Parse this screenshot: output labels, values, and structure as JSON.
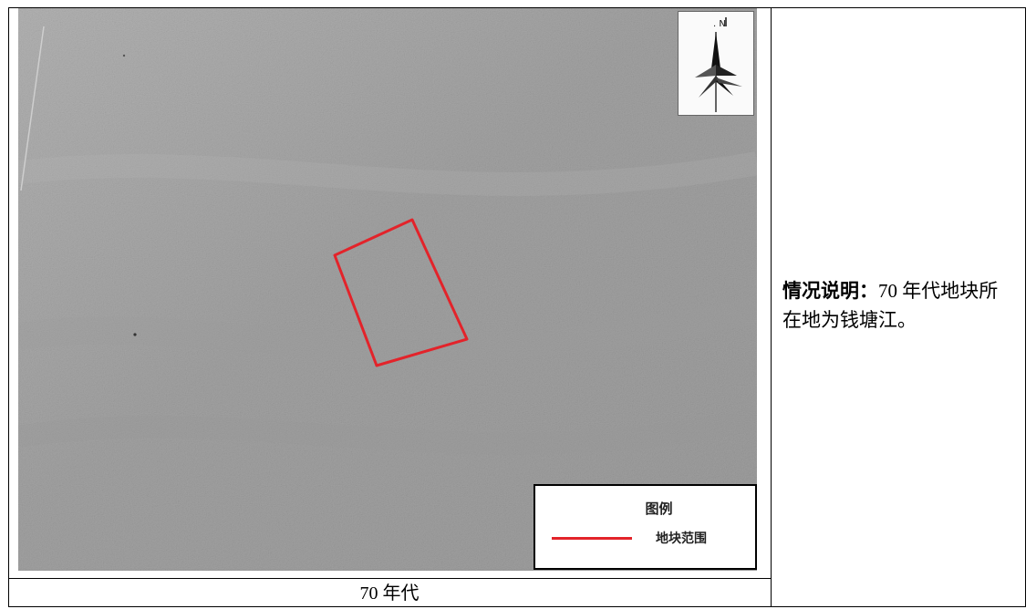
{
  "map": {
    "legend": {
      "title": "图例",
      "items": [
        {
          "label": "地块范围",
          "color": "#e3232a"
        }
      ]
    },
    "north_arrow_icon": "north-arrow-compass-icon",
    "parcel_color": "#e3232a",
    "background_color": "#a5a5a5"
  },
  "caption": "70 年代",
  "note": {
    "heading": "情况说明：",
    "text": "70 年代地块所在地为钱塘江。"
  }
}
